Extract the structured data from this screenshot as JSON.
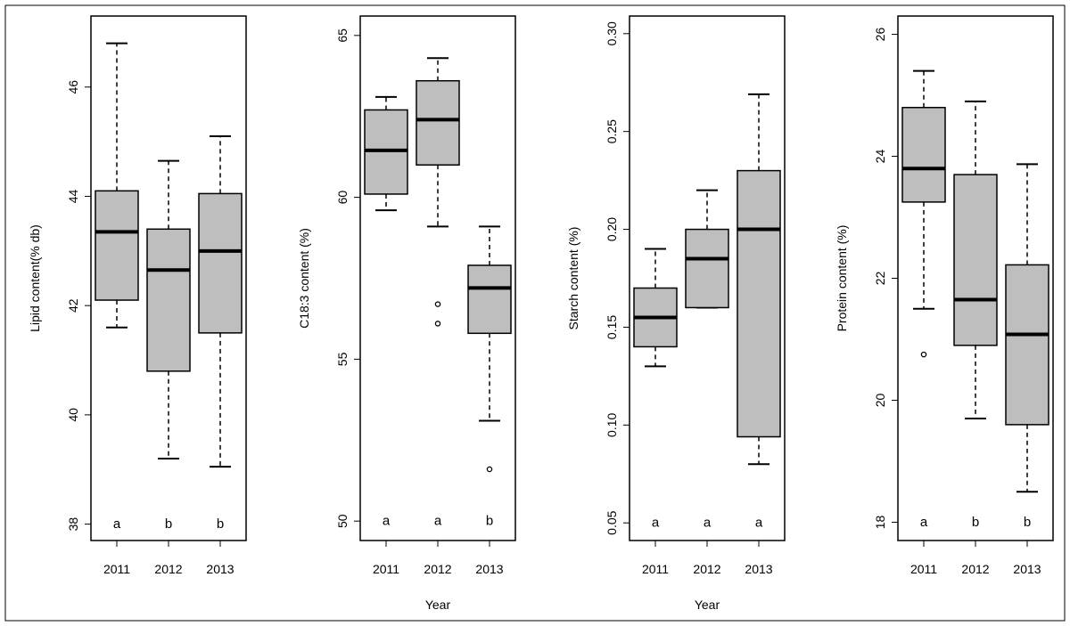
{
  "chart_data": [
    {
      "type": "boxplot",
      "ylabel": "Lipid content(% db)",
      "xlabel": "",
      "categories": [
        "2011",
        "2012",
        "2013"
      ],
      "ylim": [
        37.7,
        47.3
      ],
      "yticks": [
        38,
        40,
        42,
        44,
        46
      ],
      "ytick_labels": [
        "38",
        "40",
        "42",
        "44",
        "46"
      ],
      "boxes": [
        {
          "whisker_low": 41.6,
          "q1": 42.1,
          "median": 43.35,
          "q3": 44.1,
          "whisker_high": 46.8,
          "outliers": []
        },
        {
          "whisker_low": 39.2,
          "q1": 40.8,
          "median": 42.65,
          "q3": 43.4,
          "whisker_high": 44.65,
          "outliers": []
        },
        {
          "whisker_low": 39.05,
          "q1": 41.5,
          "median": 43.0,
          "q3": 44.05,
          "whisker_high": 45.1,
          "outliers": []
        }
      ],
      "group_letters": [
        "a",
        "b",
        "b"
      ],
      "letters_y": 38.0
    },
    {
      "type": "boxplot",
      "ylabel": "C18:3 content (%)",
      "xlabel": "Year",
      "categories": [
        "2011",
        "2012",
        "2013"
      ],
      "ylim": [
        49.4,
        65.6
      ],
      "yticks": [
        50,
        55,
        60,
        65
      ],
      "ytick_labels": [
        "50",
        "55",
        "60",
        "65"
      ],
      "boxes": [
        {
          "whisker_low": 59.6,
          "q1": 60.1,
          "median": 61.45,
          "q3": 62.7,
          "whisker_high": 63.1,
          "outliers": []
        },
        {
          "whisker_low": 59.1,
          "q1": 61.0,
          "median": 62.4,
          "q3": 63.6,
          "whisker_high": 64.3,
          "outliers": [
            56.1,
            56.7
          ]
        },
        {
          "whisker_low": 53.1,
          "q1": 55.8,
          "median": 57.2,
          "q3": 57.9,
          "whisker_high": 59.1,
          "outliers": [
            51.6
          ]
        }
      ],
      "group_letters": [
        "a",
        "a",
        "b"
      ],
      "letters_y": 50.0
    },
    {
      "type": "boxplot",
      "ylabel": "Starch content (%)",
      "xlabel": "Year",
      "categories": [
        "2011",
        "2012",
        "2013"
      ],
      "ylim": [
        0.041,
        0.309
      ],
      "yticks": [
        0.05,
        0.1,
        0.15,
        0.2,
        0.25,
        0.3
      ],
      "ytick_labels": [
        "0.05",
        "0.10",
        "0.15",
        "0.20",
        "0.25",
        "0.30"
      ],
      "boxes": [
        {
          "whisker_low": 0.13,
          "q1": 0.14,
          "median": 0.155,
          "q3": 0.17,
          "whisker_high": 0.19,
          "outliers": []
        },
        {
          "whisker_low": 0.16,
          "q1": 0.16,
          "median": 0.185,
          "q3": 0.2,
          "whisker_high": 0.22,
          "outliers": []
        },
        {
          "whisker_low": 0.08,
          "q1": 0.094,
          "median": 0.2,
          "q3": 0.23,
          "whisker_high": 0.269,
          "outliers": []
        }
      ],
      "group_letters": [
        "a",
        "a",
        "a"
      ],
      "letters_y": 0.05
    },
    {
      "type": "boxplot",
      "ylabel": "Protein content (%)",
      "xlabel": "",
      "categories": [
        "2011",
        "2012",
        "2013"
      ],
      "ylim": [
        17.7,
        26.3
      ],
      "yticks": [
        18,
        20,
        22,
        24,
        26
      ],
      "ytick_labels": [
        "18",
        "20",
        "22",
        "24",
        "26"
      ],
      "boxes": [
        {
          "whisker_low": 21.5,
          "q1": 23.25,
          "median": 23.8,
          "q3": 24.8,
          "whisker_high": 25.4,
          "outliers": [
            20.75
          ]
        },
        {
          "whisker_low": 19.7,
          "q1": 20.9,
          "median": 21.65,
          "q3": 23.7,
          "whisker_high": 24.9,
          "outliers": []
        },
        {
          "whisker_low": 18.5,
          "q1": 19.6,
          "median": 21.08,
          "q3": 22.22,
          "whisker_high": 23.87,
          "outliers": []
        }
      ],
      "group_letters": [
        "a",
        "b",
        "b"
      ],
      "letters_y": 18.0
    }
  ],
  "colors": {
    "box_fill": "#bebebe",
    "stroke": "#000000",
    "background": "#ffffff"
  }
}
